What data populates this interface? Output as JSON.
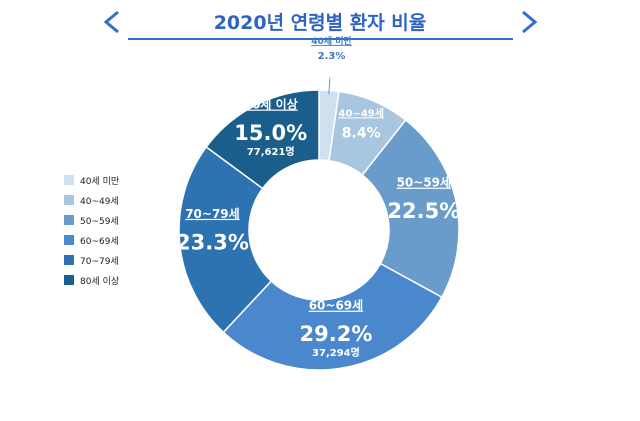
{
  "chart_data": {
    "type": "pie",
    "title": "2020년 연령별 환자 비율",
    "categories": [
      "40세 미만",
      "40~49세",
      "50~59세",
      "60~69세",
      "70~79세",
      "80세 이상"
    ],
    "values": [
      2.3,
      8.4,
      22.5,
      29.2,
      23.3,
      15.0
    ],
    "value_labels": [
      "2.3%",
      "8.4%",
      "22.5%",
      "29.2%",
      "23.3%",
      "15.0%"
    ],
    "counts": [
      "",
      "",
      "",
      "37,294명",
      "",
      "77,621명"
    ],
    "colors": [
      "#cfe0ef",
      "#a9c6e1",
      "#6a9ccb",
      "#4a87cc",
      "#2d73b2",
      "#1a5e8c"
    ],
    "legend_position": "left"
  }
}
